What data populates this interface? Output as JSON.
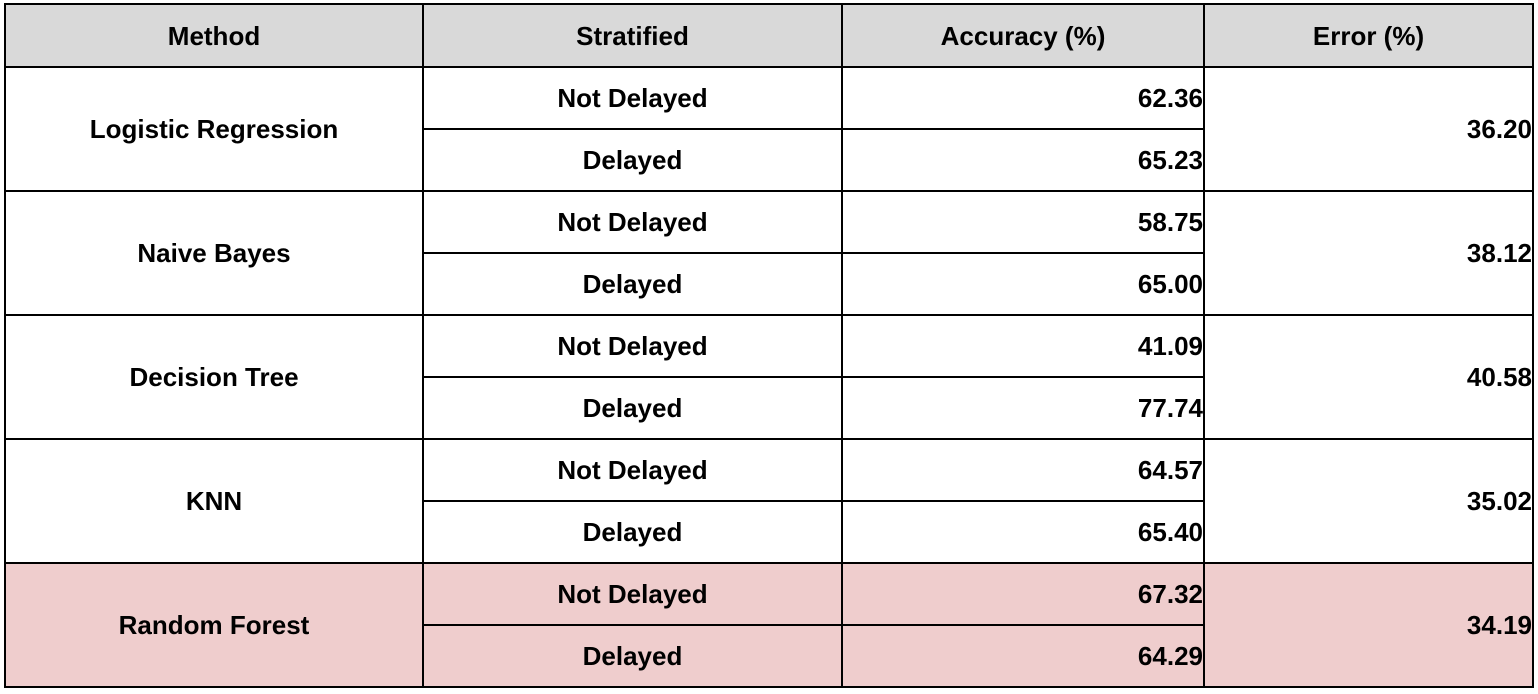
{
  "colors": {
    "header_background": "#d9d9d9",
    "highlight_background": "#efcdcd",
    "border": "#000000"
  },
  "table": {
    "headers": {
      "method": "Method",
      "stratified": "Stratified",
      "accuracy": "Accuracy (%)",
      "error": "Error (%)"
    },
    "rows": [
      {
        "method": "Logistic Regression",
        "error": "36.20",
        "highlighted": false,
        "strata": [
          {
            "label": "Not Delayed",
            "accuracy": "62.36"
          },
          {
            "label": "Delayed",
            "accuracy": "65.23"
          }
        ]
      },
      {
        "method": "Naive Bayes",
        "error": "38.12",
        "highlighted": false,
        "strata": [
          {
            "label": "Not Delayed",
            "accuracy": "58.75"
          },
          {
            "label": "Delayed",
            "accuracy": "65.00"
          }
        ]
      },
      {
        "method": "Decision Tree",
        "error": "40.58",
        "highlighted": false,
        "strata": [
          {
            "label": "Not Delayed",
            "accuracy": "41.09"
          },
          {
            "label": "Delayed",
            "accuracy": "77.74"
          }
        ]
      },
      {
        "method": "KNN",
        "error": "35.02",
        "highlighted": false,
        "strata": [
          {
            "label": "Not Delayed",
            "accuracy": "64.57"
          },
          {
            "label": "Delayed",
            "accuracy": "65.40"
          }
        ]
      },
      {
        "method": "Random Forest",
        "error": "34.19",
        "highlighted": true,
        "strata": [
          {
            "label": "Not Delayed",
            "accuracy": "67.32"
          },
          {
            "label": "Delayed",
            "accuracy": "64.29"
          }
        ]
      }
    ]
  }
}
